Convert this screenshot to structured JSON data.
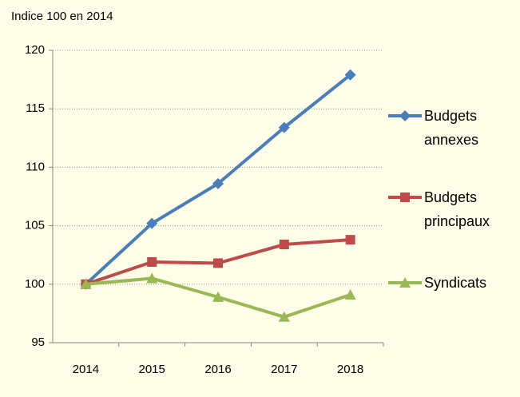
{
  "chart_data": {
    "type": "line",
    "title": "Indice 100 en 2014",
    "categories": [
      "2014",
      "2015",
      "2016",
      "2017",
      "2018"
    ],
    "series": [
      {
        "name": "Budgets annexes",
        "color": "#4a7ebb",
        "marker": "diamond",
        "values": [
          100,
          105.2,
          108.6,
          113.4,
          117.9
        ]
      },
      {
        "name": "Budgets principaux",
        "color": "#be4b48",
        "marker": "square",
        "values": [
          100,
          101.9,
          101.8,
          103.4,
          103.8
        ]
      },
      {
        "name": "Syndicats",
        "color": "#98b954",
        "marker": "triangle",
        "values": [
          100,
          100.5,
          98.9,
          97.2,
          99.1
        ]
      }
    ],
    "ylim": [
      95,
      120
    ],
    "yticks": [
      95,
      100,
      105,
      110,
      115,
      120
    ],
    "grid": true,
    "legend": "right"
  }
}
